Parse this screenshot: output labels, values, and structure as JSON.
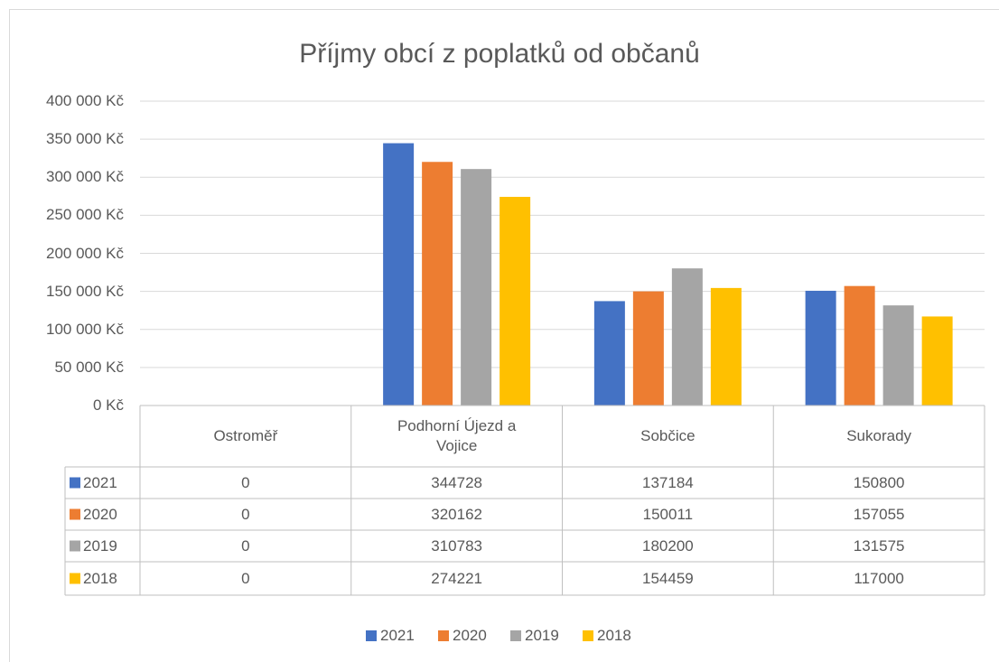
{
  "chart_data": {
    "type": "bar",
    "title": "Příjmy obcí z poplatků od občanů",
    "categories": [
      "Ostroměř",
      "Podhorní Újezd a Vojice",
      "Sobčice",
      "Sukorady"
    ],
    "series": [
      {
        "name": "2021",
        "color": "#4472c4",
        "values": [
          0,
          344728,
          137184,
          150800
        ]
      },
      {
        "name": "2020",
        "color": "#ed7d31",
        "values": [
          0,
          320162,
          150011,
          157055
        ]
      },
      {
        "name": "2019",
        "color": "#a5a5a5",
        "values": [
          0,
          310783,
          180200,
          131575
        ]
      },
      {
        "name": "2018",
        "color": "#ffc000",
        "values": [
          0,
          274221,
          154459,
          117000
        ]
      }
    ],
    "ylim": [
      0,
      400000
    ],
    "yticks": [
      {
        "value": 0,
        "label": "0 Kč"
      },
      {
        "value": 50000,
        "label": "50 000 Kč"
      },
      {
        "value": 100000,
        "label": "100 000 Kč"
      },
      {
        "value": 150000,
        "label": "150 000 Kč"
      },
      {
        "value": 200000,
        "label": "200 000 Kč"
      },
      {
        "value": 250000,
        "label": "250 000 Kč"
      },
      {
        "value": 300000,
        "label": "300 000 Kč"
      },
      {
        "value": 350000,
        "label": "350 000 Kč"
      },
      {
        "value": 400000,
        "label": "400 000 Kč"
      }
    ],
    "grid": true,
    "legend": "bottom",
    "data_table": true
  }
}
